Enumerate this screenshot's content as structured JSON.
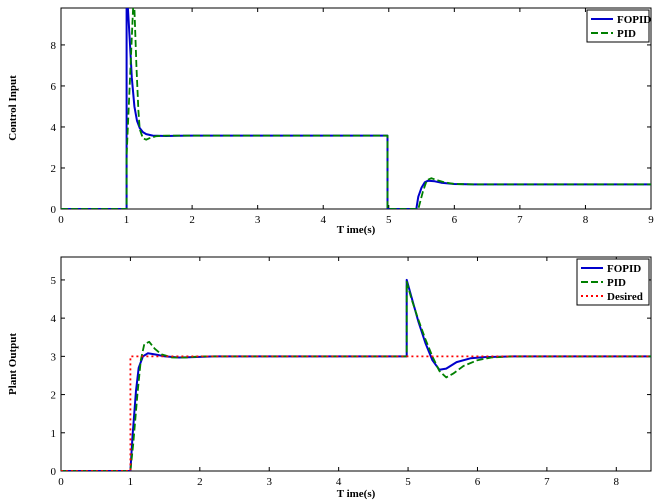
{
  "chart_data": [
    {
      "type": "line",
      "title": "",
      "xlabel": "T ime(s)",
      "ylabel": "Control Input",
      "xlim": [
        0,
        9
      ],
      "ylim": [
        0,
        9.8
      ],
      "xticks": [
        "0",
        "1",
        "2",
        "3",
        "4",
        "5",
        "6",
        "7",
        "8",
        "9"
      ],
      "yticks": [
        "0",
        "2",
        "4",
        "6",
        "8"
      ],
      "legend_position": "top-right",
      "series": [
        {
          "name": "FOPID",
          "color": "#0000cc",
          "style": "solid",
          "x": [
            0,
            1.0,
            1.0,
            1.02,
            1.05,
            1.08,
            1.12,
            1.16,
            1.2,
            1.25,
            1.3,
            1.4,
            1.6,
            1.8,
            2.0,
            4.98,
            4.98,
            5.42,
            5.45,
            5.5,
            5.55,
            5.6,
            5.7,
            5.8,
            6.0,
            6.3,
            7,
            8,
            9
          ],
          "y": [
            0,
            0,
            9.8,
            9.8,
            8.2,
            6.4,
            5.0,
            4.3,
            3.95,
            3.75,
            3.65,
            3.58,
            3.56,
            3.57,
            3.58,
            3.58,
            0,
            0,
            0.6,
            1.05,
            1.3,
            1.38,
            1.35,
            1.28,
            1.22,
            1.2,
            1.2,
            1.2,
            1.2
          ]
        },
        {
          "name": "PID",
          "color": "#008000",
          "style": "dashed",
          "x": [
            0,
            1.0,
            1.0,
            1.1,
            1.12,
            1.15,
            1.18,
            1.2,
            1.25,
            1.3,
            1.35,
            1.45,
            1.6,
            1.8,
            2.0,
            4.98,
            4.98,
            5.45,
            5.52,
            5.58,
            5.65,
            5.72,
            5.85,
            6.0,
            6.3,
            7,
            8,
            9
          ],
          "y": [
            0,
            0,
            2.6,
            9.8,
            9.8,
            7.0,
            4.8,
            3.9,
            3.45,
            3.38,
            3.45,
            3.55,
            3.58,
            3.58,
            3.58,
            3.58,
            0,
            0,
            0.85,
            1.4,
            1.5,
            1.42,
            1.3,
            1.22,
            1.2,
            1.2,
            1.2,
            1.2
          ]
        }
      ]
    },
    {
      "type": "line",
      "title": "",
      "xlabel": "T ime(s)",
      "ylabel": "Plant Output",
      "xlim": [
        0,
        8.5
      ],
      "ylim": [
        0,
        5.6
      ],
      "xticks": [
        "0",
        "1",
        "2",
        "3",
        "4",
        "5",
        "6",
        "7",
        "8"
      ],
      "yticks": [
        "0",
        "1",
        "2",
        "3",
        "4",
        "5"
      ],
      "legend_position": "top-right",
      "series": [
        {
          "name": "FOPID",
          "color": "#0000cc",
          "style": "solid",
          "x": [
            0,
            1.0,
            1.03,
            1.08,
            1.12,
            1.18,
            1.25,
            1.35,
            1.5,
            1.7,
            1.9,
            2.2,
            2.6,
            3,
            4.98,
            4.98,
            5.05,
            5.15,
            5.25,
            5.35,
            5.45,
            5.55,
            5.7,
            5.9,
            6.1,
            6.5,
            7,
            8,
            8.5
          ],
          "y": [
            0,
            0,
            0.9,
            2.1,
            2.7,
            3.0,
            3.08,
            3.05,
            3.0,
            2.97,
            2.98,
            3.0,
            3.0,
            3.0,
            3.0,
            5.0,
            4.55,
            3.9,
            3.35,
            2.9,
            2.65,
            2.68,
            2.85,
            2.95,
            2.98,
            3.0,
            3.0,
            3.0,
            3.0
          ]
        },
        {
          "name": "PID",
          "color": "#008000",
          "style": "dashed",
          "x": [
            0,
            1.0,
            1.04,
            1.1,
            1.15,
            1.2,
            1.27,
            1.35,
            1.45,
            1.6,
            1.8,
            2.0,
            2.3,
            2.6,
            3,
            4.98,
            4.98,
            5.05,
            5.15,
            5.25,
            5.35,
            5.45,
            5.55,
            5.65,
            5.8,
            6.0,
            6.2,
            6.5,
            7,
            8,
            8.5
          ],
          "y": [
            0,
            0,
            0.7,
            2.0,
            2.9,
            3.32,
            3.38,
            3.2,
            3.05,
            2.97,
            2.97,
            3.0,
            3.0,
            3.0,
            3.0,
            3.0,
            4.95,
            4.5,
            3.95,
            3.45,
            3.0,
            2.62,
            2.45,
            2.55,
            2.75,
            2.9,
            2.97,
            3.0,
            3.0,
            3.0,
            3.0
          ]
        },
        {
          "name": "Desired",
          "color": "#ff0000",
          "style": "dotted",
          "x": [
            0,
            1.0,
            1.0,
            8.5
          ],
          "y": [
            0,
            0,
            3,
            3
          ]
        }
      ]
    }
  ]
}
